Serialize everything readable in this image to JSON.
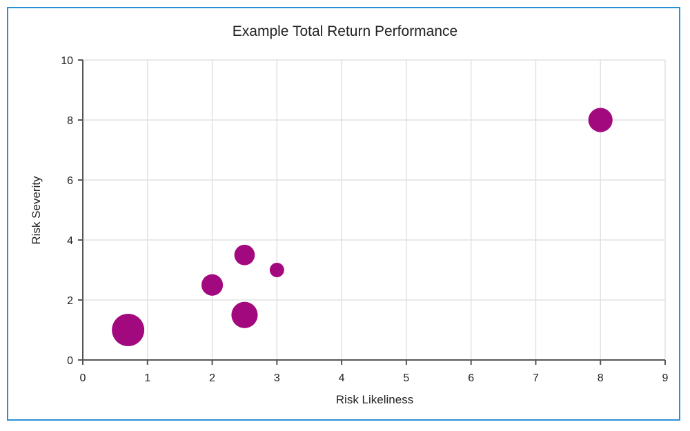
{
  "chart_data": {
    "type": "scatter",
    "title": "Example Total Return Performance",
    "xlabel": "Risk Likeliness",
    "ylabel": "Risk Severity",
    "xlim": [
      0,
      9
    ],
    "ylim": [
      0,
      10
    ],
    "xticks": [
      0,
      1,
      2,
      3,
      4,
      5,
      6,
      7,
      8,
      9
    ],
    "yticks": [
      0,
      2,
      4,
      6,
      8,
      10
    ],
    "grid": true,
    "legend": "none",
    "point_color": "#A3097F",
    "points": [
      {
        "x": 0.7,
        "y": 1.0,
        "size": 5
      },
      {
        "x": 2.0,
        "y": 2.5,
        "size": 2.2
      },
      {
        "x": 2.5,
        "y": 3.5,
        "size": 2
      },
      {
        "x": 2.5,
        "y": 1.5,
        "size": 3.3
      },
      {
        "x": 3.0,
        "y": 3.0,
        "size": 1
      },
      {
        "x": 8.0,
        "y": 8.0,
        "size": 2.8
      }
    ]
  }
}
